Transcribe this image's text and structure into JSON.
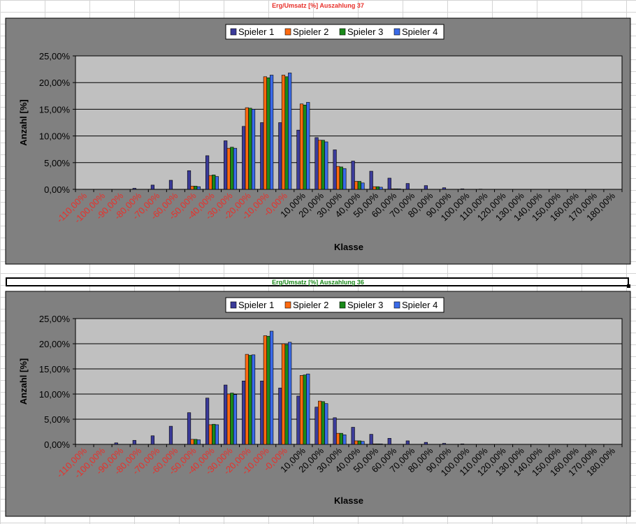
{
  "colors": {
    "title_red": "#e8302a",
    "title_green": "#1a8a1a",
    "negative_tick": "#e8302a",
    "chart_area": "#808080",
    "plot_area": "#c0c0c0"
  },
  "sheet": {
    "title_1": "Erg/Umsatz [%] Auszahlung 37",
    "title_2": "Erg/Umsatz [%] Auszahlung 36"
  },
  "chart_data": [
    {
      "type": "bar",
      "title": "Erg/Umsatz [%] Auszahlung 37",
      "xlabel": "Klasse",
      "ylabel": "Anzahl [%]",
      "ylim": [
        0,
        25
      ],
      "yticks": [
        "0,00%",
        "5,00%",
        "10,00%",
        "15,00%",
        "20,00%",
        "25,00%"
      ],
      "grid": true,
      "legend_position": "top-center",
      "categories": [
        "-110,00%",
        "-100,00%",
        "-90,00%",
        "-80,00%",
        "-70,00%",
        "-60,00%",
        "-50,00%",
        "-40,00%",
        "-30,00%",
        "-20,00%",
        "-10,00%",
        "-0,00%",
        "10,00%",
        "20,00%",
        "30,00%",
        "40,00%",
        "50,00%",
        "60,00%",
        "70,00%",
        "80,00%",
        "90,00%",
        "100,00%",
        "110,00%",
        "120,00%",
        "130,00%",
        "140,00%",
        "150,00%",
        "160,00%",
        "170,00%",
        "180,00%"
      ],
      "series": [
        {
          "name": "Spieler 1",
          "color": "#3b3b9a",
          "values": [
            0,
            0,
            0,
            0.2,
            0.8,
            1.7,
            3.5,
            6.3,
            9.1,
            11.8,
            12.5,
            12.5,
            11.1,
            9.7,
            7.4,
            5.3,
            3.4,
            2.1,
            1.1,
            0.7,
            0.3,
            0.1,
            0.05,
            0,
            0,
            0,
            0,
            0,
            0,
            0
          ]
        },
        {
          "name": "Spieler 2",
          "color": "#ff6a10",
          "values": [
            0,
            0,
            0,
            0,
            0,
            0,
            0.6,
            2.6,
            7.7,
            15.3,
            21.1,
            21.4,
            16.0,
            9.2,
            4.3,
            1.5,
            0.5,
            0.1,
            0,
            0,
            0,
            0,
            0,
            0,
            0,
            0,
            0,
            0,
            0,
            0
          ]
        },
        {
          "name": "Spieler 3",
          "color": "#1a8a1a",
          "values": [
            0,
            0,
            0,
            0,
            0,
            0,
            0.6,
            2.7,
            7.9,
            15.2,
            20.9,
            21.1,
            15.8,
            9.2,
            4.2,
            1.5,
            0.5,
            0.1,
            0,
            0,
            0,
            0,
            0,
            0,
            0,
            0,
            0,
            0,
            0,
            0
          ]
        },
        {
          "name": "Spieler 4",
          "color": "#3a6ae8",
          "values": [
            0,
            0,
            0,
            0,
            0,
            0,
            0.5,
            2.4,
            7.7,
            15.0,
            21.4,
            21.8,
            16.3,
            8.9,
            3.9,
            1.2,
            0.4,
            0.1,
            0,
            0,
            0,
            0,
            0,
            0,
            0,
            0,
            0,
            0,
            0,
            0
          ]
        }
      ]
    },
    {
      "type": "bar",
      "title": "Erg/Umsatz [%] Auszahlung 36",
      "xlabel": "Klasse",
      "ylabel": "Anzahl [%]",
      "ylim": [
        0,
        25
      ],
      "yticks": [
        "0,00%",
        "5,00%",
        "10,00%",
        "15,00%",
        "20,00%",
        "25,00%"
      ],
      "grid": true,
      "legend_position": "top-center",
      "categories": [
        "-110,00%",
        "-100,00%",
        "-90,00%",
        "-80,00%",
        "-70,00%",
        "-60,00%",
        "-50,00%",
        "-40,00%",
        "-30,00%",
        "-20,00%",
        "-10,00%",
        "-0,00%",
        "10,00%",
        "20,00%",
        "30,00%",
        "40,00%",
        "50,00%",
        "60,00%",
        "70,00%",
        "80,00%",
        "90,00%",
        "100,00%",
        "110,00%",
        "120,00%",
        "130,00%",
        "140,00%",
        "150,00%",
        "160,00%",
        "170,00%",
        "180,00%"
      ],
      "series": [
        {
          "name": "Spieler 1",
          "color": "#3b3b9a",
          "values": [
            0,
            0,
            0.3,
            0.8,
            1.7,
            3.6,
            6.3,
            9.2,
            11.8,
            12.6,
            12.6,
            11.2,
            9.6,
            7.4,
            5.3,
            3.4,
            2.0,
            1.2,
            0.7,
            0.4,
            0.2,
            0.1,
            0,
            0,
            0,
            0,
            0,
            0,
            0,
            0
          ]
        },
        {
          "name": "Spieler 2",
          "color": "#ff6a10",
          "values": [
            0,
            0,
            0,
            0,
            0,
            0,
            1.0,
            3.9,
            10.0,
            17.9,
            21.6,
            20.0,
            13.7,
            8.6,
            2.2,
            0.7,
            0.1,
            0,
            0,
            0,
            0,
            0,
            0,
            0,
            0,
            0,
            0,
            0,
            0,
            0
          ]
        },
        {
          "name": "Spieler 3",
          "color": "#1a8a1a",
          "values": [
            0,
            0,
            0,
            0,
            0,
            0,
            1.0,
            4.0,
            10.2,
            17.7,
            21.5,
            19.8,
            13.8,
            8.5,
            2.2,
            0.7,
            0.1,
            0,
            0,
            0,
            0,
            0,
            0,
            0,
            0,
            0,
            0,
            0,
            0,
            0
          ]
        },
        {
          "name": "Spieler 4",
          "color": "#3a6ae8",
          "values": [
            0,
            0,
            0,
            0,
            0,
            0,
            0.9,
            3.9,
            9.9,
            17.8,
            22.5,
            20.3,
            14.0,
            8.1,
            1.9,
            0.6,
            0.1,
            0,
            0,
            0,
            0,
            0,
            0,
            0,
            0,
            0,
            0,
            0,
            0,
            0
          ]
        }
      ]
    }
  ]
}
